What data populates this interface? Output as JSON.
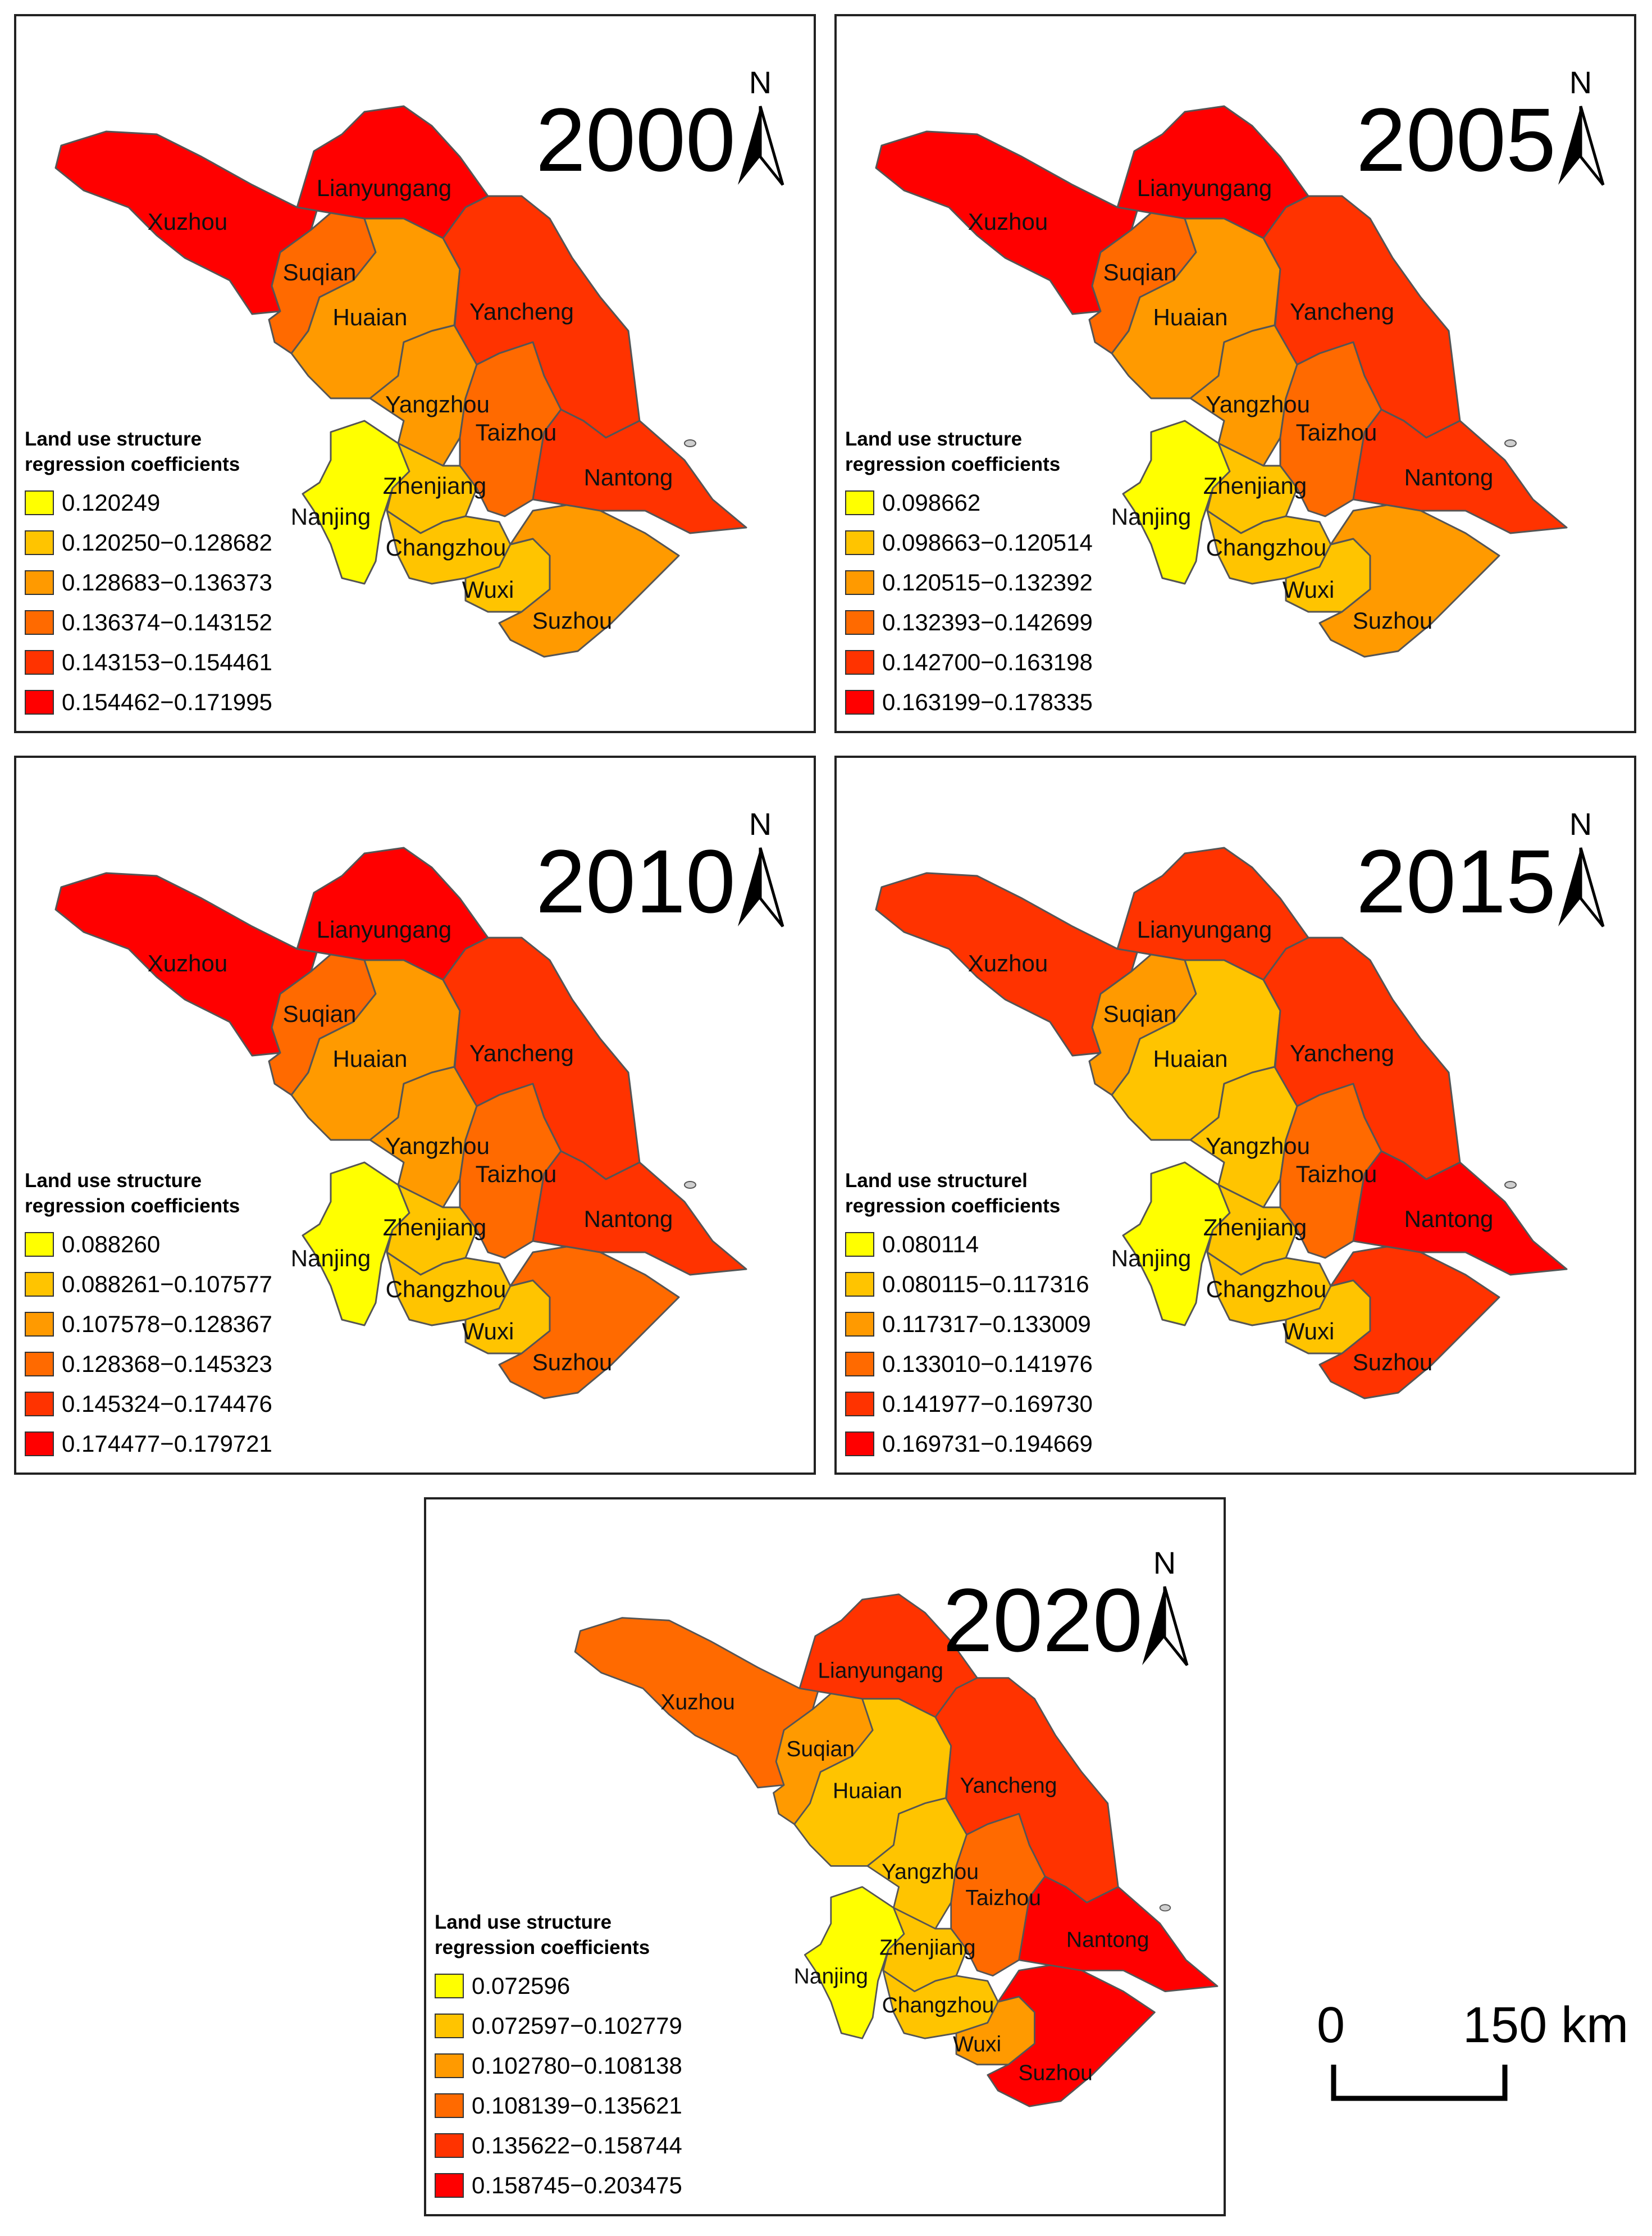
{
  "region_names": [
    "Xuzhou",
    "Lianyungang",
    "Suqian",
    "Huaian",
    "Yancheng",
    "Yangzhou",
    "Taizhou",
    "Nanjing",
    "Zhenjiang",
    "Nantong",
    "Changzhou",
    "Wuxi",
    "Suzhou"
  ],
  "north_label": "N",
  "scale": {
    "zero": "0",
    "end": "150 km"
  },
  "maps": [
    {
      "year": "2000",
      "legend_title": [
        "Land use structure",
        "regression coefficients"
      ],
      "classes": [
        "0.120249",
        "0.120250−0.128682",
        "0.128683−0.136373",
        "0.136374−0.143152",
        "0.143153−0.154461",
        "0.154462−0.171995"
      ],
      "region_class": {
        "Xuzhou": 5,
        "Lianyungang": 5,
        "Suqian": 3,
        "Huaian": 2,
        "Yancheng": 4,
        "Yangzhou": 2,
        "Taizhou": 3,
        "Nanjing": 0,
        "Zhenjiang": 1,
        "Nantong": 4,
        "Changzhou": 1,
        "Wuxi": 1,
        "Suzhou": 2
      }
    },
    {
      "year": "2005",
      "legend_title": [
        "Land use structure",
        "regression coefficients"
      ],
      "classes": [
        "0.098662",
        "0.098663−0.120514",
        "0.120515−0.132392",
        "0.132393−0.142699",
        "0.142700−0.163198",
        "0.163199−0.178335"
      ],
      "region_class": {
        "Xuzhou": 5,
        "Lianyungang": 5,
        "Suqian": 3,
        "Huaian": 2,
        "Yancheng": 4,
        "Yangzhou": 2,
        "Taizhou": 3,
        "Nanjing": 0,
        "Zhenjiang": 1,
        "Nantong": 4,
        "Changzhou": 1,
        "Wuxi": 1,
        "Suzhou": 2
      }
    },
    {
      "year": "2010",
      "legend_title": [
        "Land use structure",
        "regression coefficients"
      ],
      "classes": [
        "0.088260",
        "0.088261−0.107577",
        "0.107578−0.128367",
        "0.128368−0.145323",
        "0.145324−0.174476",
        "0.174477−0.179721"
      ],
      "region_class": {
        "Xuzhou": 5,
        "Lianyungang": 5,
        "Suqian": 3,
        "Huaian": 2,
        "Yancheng": 4,
        "Yangzhou": 2,
        "Taizhou": 3,
        "Nanjing": 0,
        "Zhenjiang": 1,
        "Nantong": 4,
        "Changzhou": 1,
        "Wuxi": 1,
        "Suzhou": 3
      }
    },
    {
      "year": "2015",
      "legend_title": [
        "Land use structurel",
        "regression coefficients"
      ],
      "classes": [
        "0.080114",
        "0.080115−0.117316",
        "0.117317−0.133009",
        "0.133010−0.141976",
        "0.141977−0.169730",
        "0.169731−0.194669"
      ],
      "region_class": {
        "Xuzhou": 4,
        "Lianyungang": 4,
        "Suqian": 2,
        "Huaian": 1,
        "Yancheng": 4,
        "Yangzhou": 1,
        "Taizhou": 3,
        "Nanjing": 0,
        "Zhenjiang": 1,
        "Nantong": 5,
        "Changzhou": 1,
        "Wuxi": 1,
        "Suzhou": 4
      }
    },
    {
      "year": "2020",
      "legend_title": [
        "Land use structure",
        "regression coefficients"
      ],
      "classes": [
        "0.072596",
        "0.072597−0.102779",
        "0.102780−0.108138",
        "0.108139−0.135621",
        "0.135622−0.158744",
        "0.158745−0.203475"
      ],
      "region_class": {
        "Xuzhou": 3,
        "Lianyungang": 4,
        "Suqian": 2,
        "Huaian": 1,
        "Yancheng": 4,
        "Yangzhou": 1,
        "Taizhou": 3,
        "Nanjing": 0,
        "Zhenjiang": 1,
        "Nantong": 5,
        "Changzhou": 1,
        "Wuxi": 2,
        "Suzhou": 5
      }
    }
  ],
  "class_colors": [
    "#ffff00",
    "#ffc400",
    "#ff9a00",
    "#ff6a00",
    "#ff3300",
    "#ff0000"
  ],
  "border_color": "#555555",
  "outline_color": "#1a2a3a"
}
